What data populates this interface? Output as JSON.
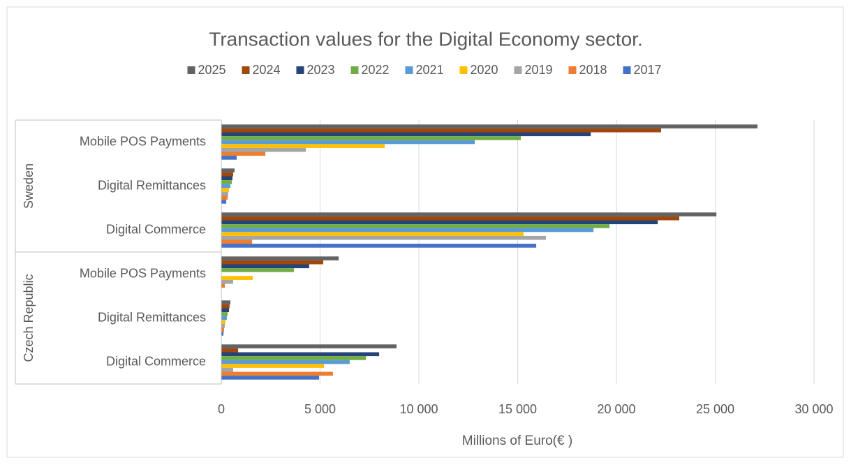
{
  "chart_data": {
    "type": "bar",
    "orientation": "horizontal",
    "title": "Transaction values for the Digital Economy sector.",
    "x_label": "Millions of Euro(€ )",
    "groups": [
      {
        "name": "Sweden",
        "categories": [
          "Mobile POS Payments",
          "Digital Remittances",
          "Digital Commerce"
        ]
      },
      {
        "name": "Czech Republic",
        "categories": [
          "Mobile POS Payments",
          "Digital Remittances",
          "Digital Commerce"
        ]
      }
    ],
    "series": [
      {
        "name": "2025",
        "color": "#636363",
        "values": [
          27140,
          670,
          25060,
          5940,
          460,
          8870
        ]
      },
      {
        "name": "2024",
        "color": "#9e480e",
        "values": [
          22260,
          600,
          23180,
          5160,
          420,
          850
        ]
      },
      {
        "name": "2023",
        "color": "#264478",
        "values": [
          18700,
          565,
          22090,
          4450,
          390,
          7990
        ]
      },
      {
        "name": "2022",
        "color": "#70ad47",
        "values": [
          15160,
          530,
          19650,
          3680,
          320,
          7320
        ]
      },
      {
        "name": "2021",
        "color": "#5b9bd5",
        "values": [
          12830,
          460,
          18840,
          0,
          280,
          6500
        ]
      },
      {
        "name": "2020",
        "color": "#ffc000",
        "values": [
          8270,
          390,
          15300,
          1590,
          210,
          5200
        ]
      },
      {
        "name": "2019",
        "color": "#a5a5a5",
        "values": [
          4280,
          350,
          16430,
          600,
          180,
          600
        ]
      },
      {
        "name": "2018",
        "color": "#ed7d31",
        "values": [
          2230,
          320,
          1560,
          180,
          140,
          5650
        ]
      },
      {
        "name": "2017",
        "color": "#4472c4",
        "values": [
          780,
          250,
          15940,
          0,
          110,
          4950
        ]
      }
    ],
    "xlim": [
      0,
      30000
    ],
    "xticks": [
      0,
      {
        "value": 5000,
        "label": "5 000"
      },
      {
        "value": 10000,
        "label": "10 000"
      },
      {
        "value": 15000,
        "label": "15 000"
      },
      {
        "value": 20000,
        "label": "20 000"
      },
      {
        "value": 25000,
        "label": "25 000"
      },
      {
        "value": 30000,
        "label": "30 000"
      }
    ],
    "grid": true,
    "legend": "top"
  }
}
